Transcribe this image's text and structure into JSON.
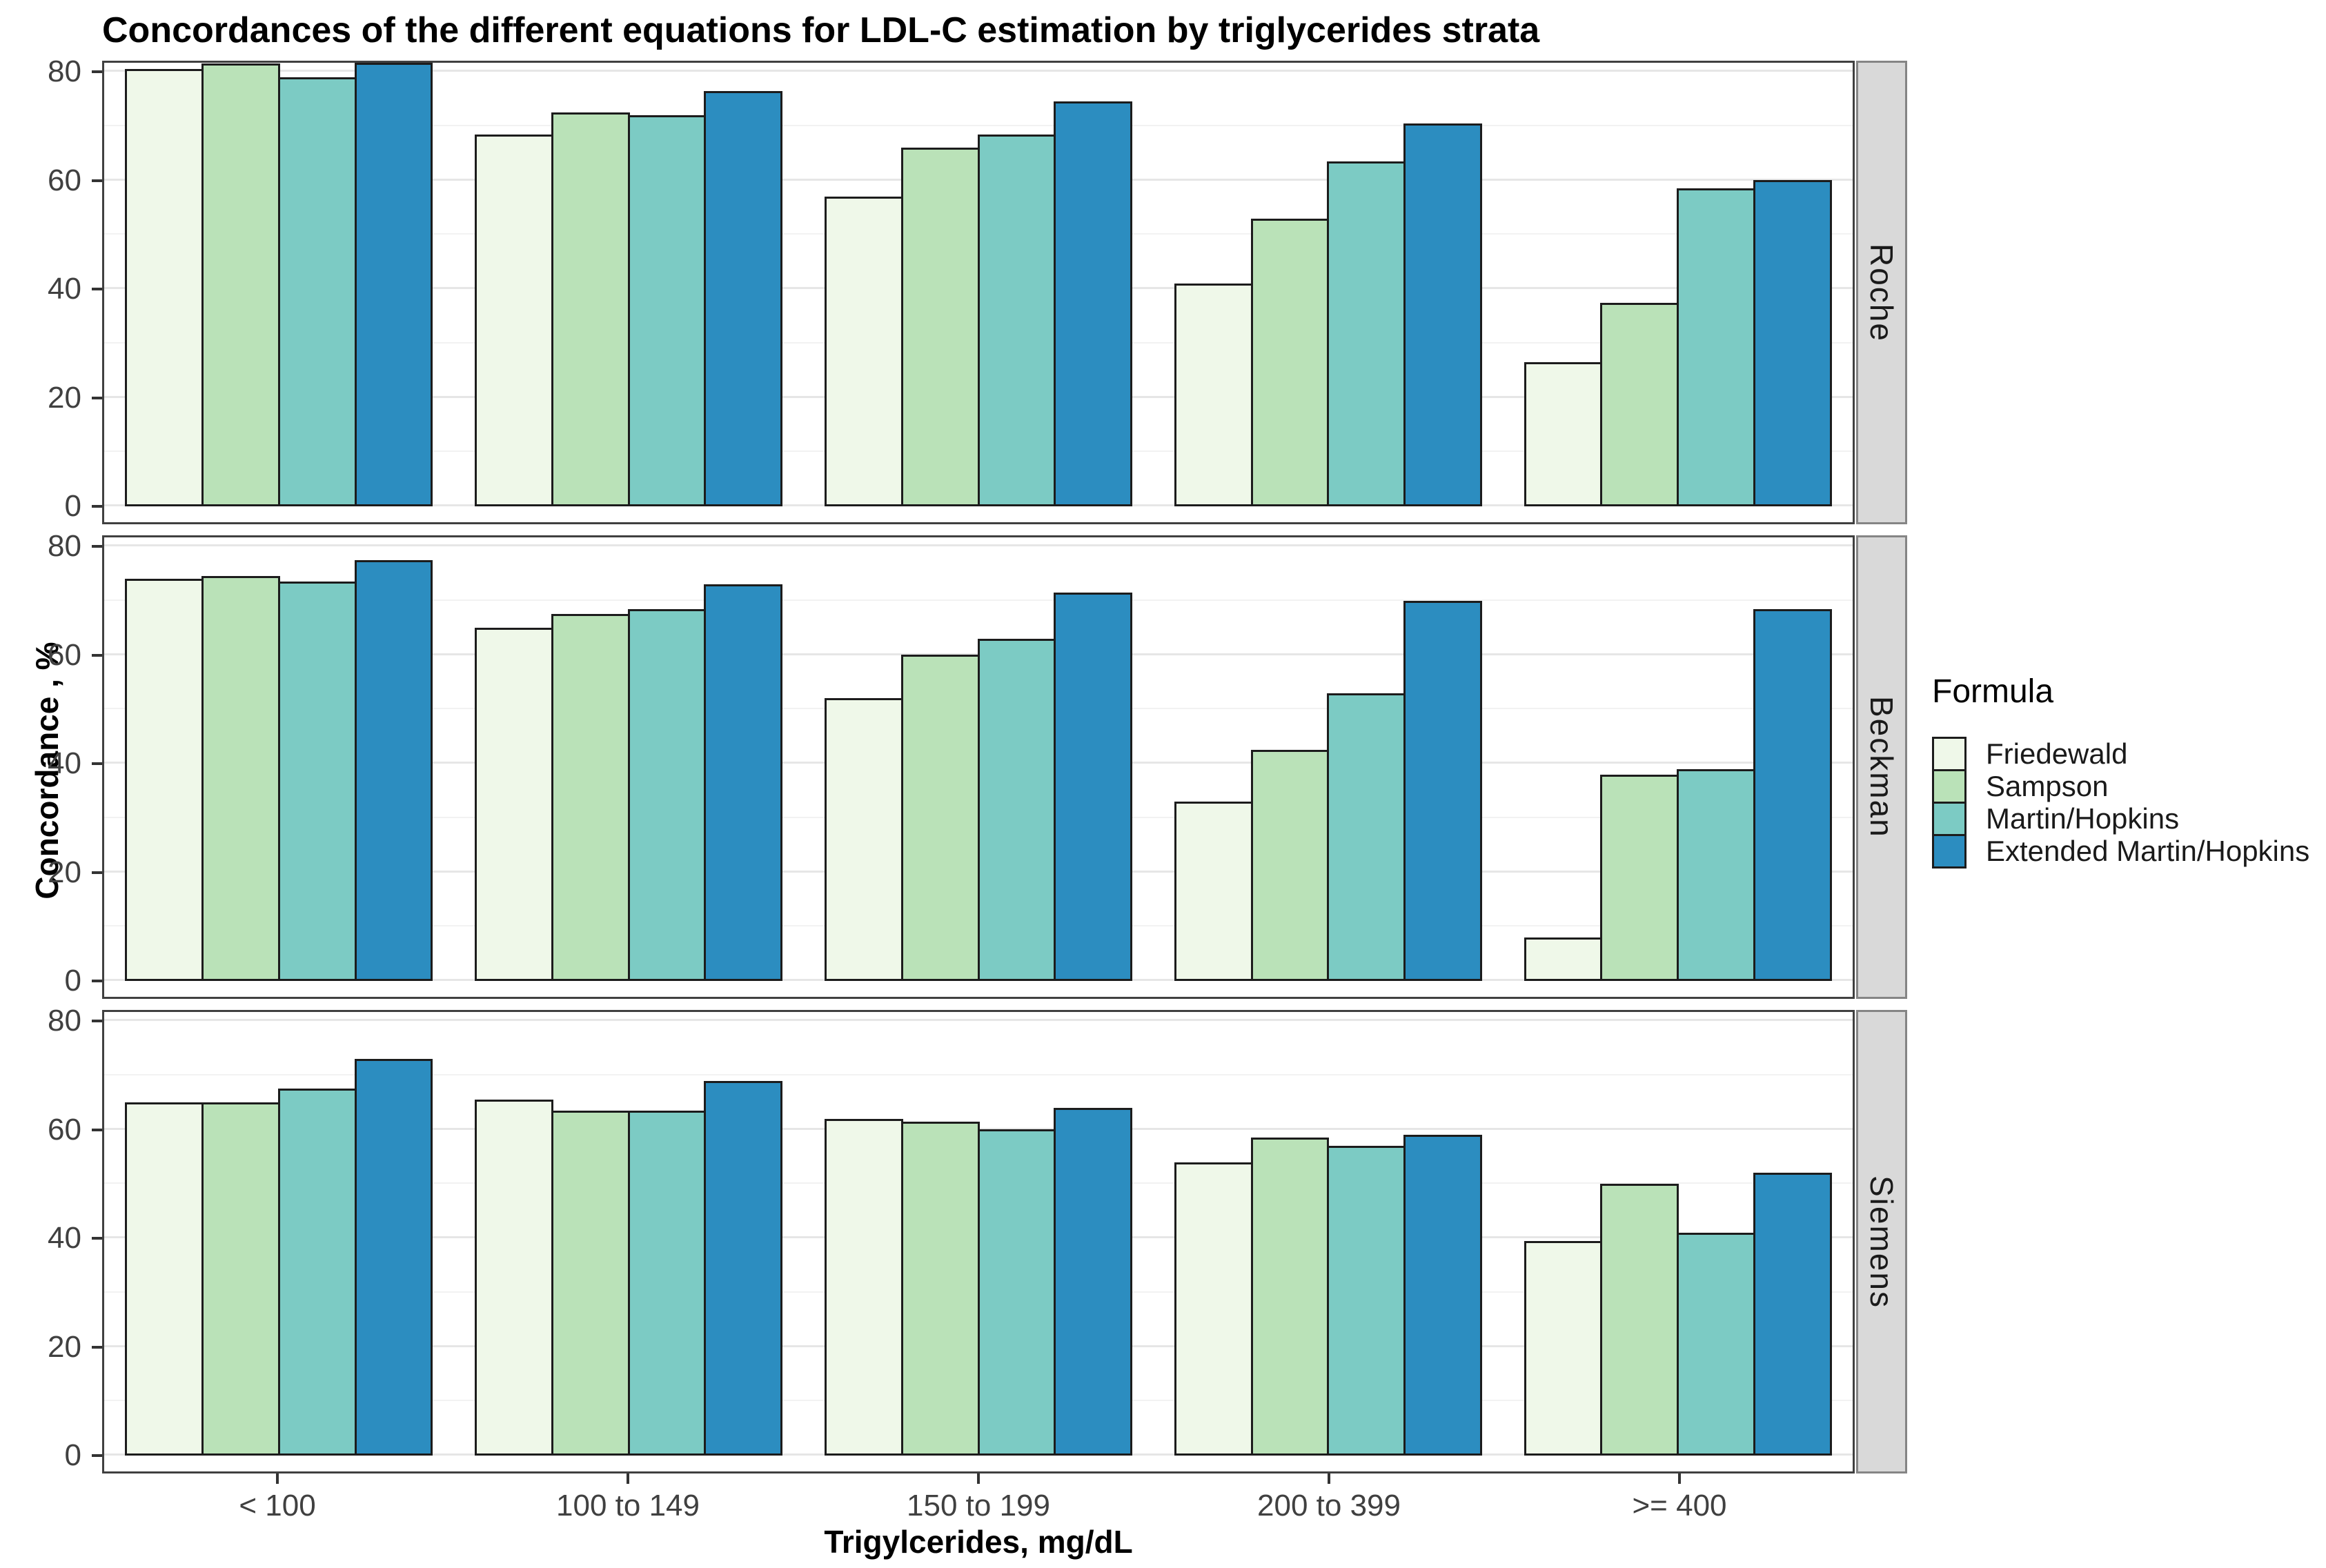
{
  "chart_data": {
    "type": "bar",
    "title": "Concordances of the different equations for LDL-C estimation by triglycerides strata",
    "xlabel": "Trigylcerides, mg/dL",
    "ylabel": "Concordance , %",
    "categories": [
      "< 100",
      "100 to 149",
      "150 to 199",
      "200 to 399",
      ">= 400"
    ],
    "y_ticks": [
      0,
      20,
      40,
      60,
      80
    ],
    "y_minor_ticks": [
      10,
      30,
      50,
      70
    ],
    "ylim": [
      0,
      82
    ],
    "grid": "major+minor horizontal",
    "legend_title": "Formula",
    "legend_position": "right",
    "series_names": [
      "Friedewald",
      "Sampson",
      "Martin/Hopkins",
      "Extended Martin/Hopkins"
    ],
    "series_colors": [
      "#EFF8E9",
      "#BAE2B8",
      "#7CCBC4",
      "#2C8DC0"
    ],
    "facets": [
      {
        "label": "Roche",
        "series": [
          {
            "name": "Friedewald",
            "values": [
              80.5,
              68.5,
              57,
              41,
              26.5
            ]
          },
          {
            "name": "Sampson",
            "values": [
              81.5,
              72.5,
              66,
              53,
              37.5
            ]
          },
          {
            "name": "Martin/Hopkins",
            "values": [
              79,
              72,
              68.5,
              63.5,
              58.5
            ]
          },
          {
            "name": "Extended Martin/Hopkins",
            "values": [
              83,
              76.5,
              74.5,
              70.5,
              60
            ]
          }
        ]
      },
      {
        "label": "Beckman",
        "series": [
          {
            "name": "Friedewald",
            "values": [
              74,
              65,
              52,
              33,
              8
            ]
          },
          {
            "name": "Sampson",
            "values": [
              74.5,
              67.5,
              60,
              42.5,
              38
            ]
          },
          {
            "name": "Martin/Hopkins",
            "values": [
              73.5,
              68.5,
              63,
              53,
              39
            ]
          },
          {
            "name": "Extended Martin/Hopkins",
            "values": [
              77.5,
              73,
              71.5,
              70,
              68.5
            ]
          }
        ]
      },
      {
        "label": "Siemens",
        "series": [
          {
            "name": "Friedewald",
            "values": [
              65,
              65.5,
              62,
              54,
              39.5
            ]
          },
          {
            "name": "Sampson",
            "values": [
              65,
              63.5,
              61.5,
              58.5,
              50
            ]
          },
          {
            "name": "Martin/Hopkins",
            "values": [
              67.5,
              63.5,
              60,
              57,
              41
            ]
          },
          {
            "name": "Extended Martin/Hopkins",
            "values": [
              73,
              69,
              64,
              59,
              52
            ]
          }
        ]
      }
    ],
    "colors": {
      "bar_stroke": "#1c1c1c",
      "panel_border": "#404040",
      "strip_fill": "#d9d9d9",
      "strip_border": "#858585",
      "grid_major": "#e6e6e6",
      "grid_minor": "#f2f2f2",
      "tick_text": "#404040"
    }
  }
}
